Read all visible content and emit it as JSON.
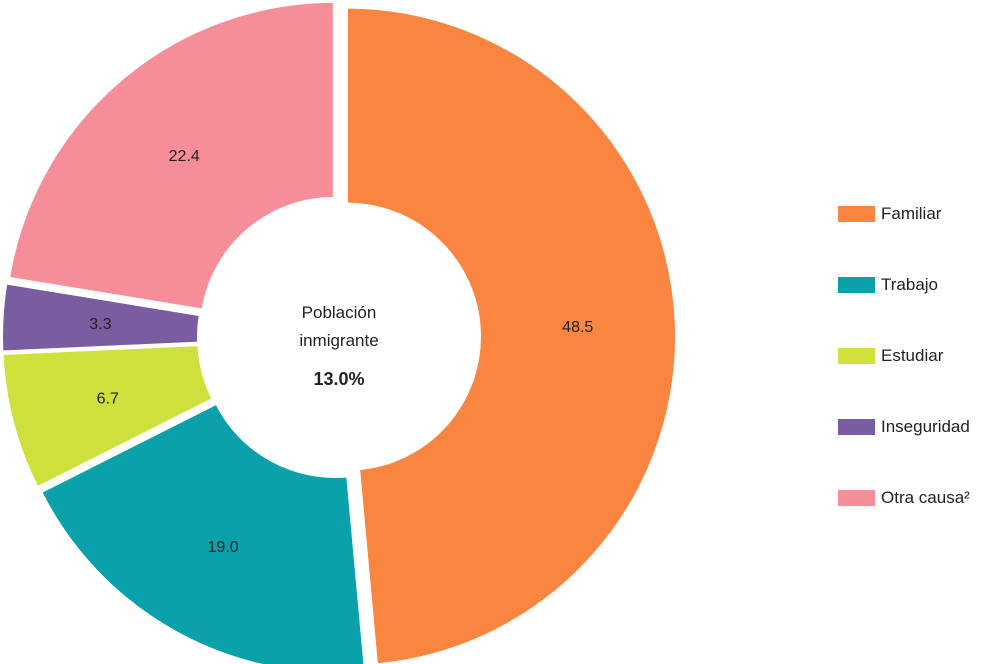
{
  "chart_data": {
    "type": "pie",
    "donut": true,
    "center": {
      "line1": "Población",
      "line2": "inmigrante",
      "value": "13.0%"
    },
    "categories": [
      "Familiar",
      "Trabajo",
      "Estudiar",
      "Inseguridad",
      "Otra causa²"
    ],
    "values": [
      48.5,
      19.0,
      6.7,
      3.3,
      22.4
    ],
    "labels": [
      "48.5",
      "19.0",
      "6.7",
      "3.3",
      "22.4"
    ],
    "colors": [
      "#F98540",
      "#0AA1AA",
      "#CFDF3C",
      "#7A5CA0",
      "#F58E99"
    ],
    "legend_position": "right"
  }
}
